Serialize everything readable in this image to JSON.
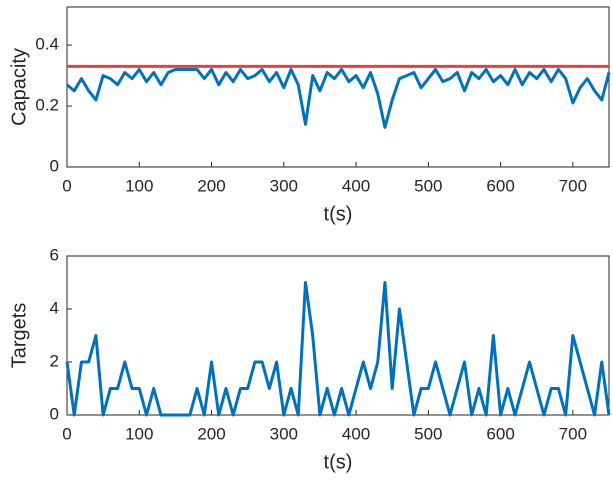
{
  "chart_data": [
    {
      "type": "line",
      "xlabel": "t(s)",
      "ylabel": "Capacity",
      "x": [
        0,
        10,
        20,
        30,
        40,
        50,
        60,
        70,
        80,
        90,
        100,
        110,
        120,
        130,
        140,
        150,
        160,
        170,
        180,
        190,
        200,
        210,
        220,
        230,
        240,
        250,
        260,
        270,
        280,
        290,
        300,
        310,
        320,
        330,
        340,
        350,
        360,
        370,
        380,
        390,
        400,
        410,
        420,
        430,
        440,
        450,
        460,
        470,
        480,
        490,
        500,
        510,
        520,
        530,
        540,
        550,
        560,
        570,
        580,
        590,
        600,
        610,
        620,
        630,
        640,
        650,
        660,
        670,
        680,
        690,
        700,
        710,
        720,
        730,
        740,
        750
      ],
      "series": [
        {
          "color": "#0072bd",
          "values": [
            0.27,
            0.25,
            0.29,
            0.25,
            0.22,
            0.3,
            0.29,
            0.27,
            0.31,
            0.29,
            0.32,
            0.28,
            0.31,
            0.27,
            0.31,
            0.32,
            0.32,
            0.32,
            0.32,
            0.29,
            0.32,
            0.27,
            0.31,
            0.28,
            0.32,
            0.29,
            0.3,
            0.32,
            0.28,
            0.31,
            0.26,
            0.32,
            0.27,
            0.14,
            0.3,
            0.25,
            0.31,
            0.29,
            0.32,
            0.28,
            0.3,
            0.26,
            0.31,
            0.24,
            0.13,
            0.22,
            0.29,
            0.3,
            0.31,
            0.26,
            0.29,
            0.32,
            0.28,
            0.29,
            0.31,
            0.25,
            0.31,
            0.29,
            0.32,
            0.28,
            0.3,
            0.27,
            0.32,
            0.27,
            0.31,
            0.29,
            0.32,
            0.28,
            0.32,
            0.29,
            0.21,
            0.26,
            0.29,
            0.25,
            0.22,
            0.31
          ]
        },
        {
          "color": "#e8403c",
          "x": [
            0,
            750
          ],
          "values": [
            0.33,
            0.33
          ]
        }
      ],
      "xlim": [
        0,
        750
      ],
      "ylim": [
        0,
        0.525
      ],
      "xticks": [
        0,
        100,
        200,
        300,
        400,
        500,
        600,
        700
      ],
      "yticks": [
        0,
        0.2,
        0.4
      ]
    },
    {
      "type": "line",
      "xlabel": "t(s)",
      "ylabel": "Targets",
      "x": [
        0,
        10,
        20,
        30,
        40,
        50,
        60,
        70,
        80,
        90,
        100,
        110,
        120,
        130,
        140,
        150,
        160,
        170,
        180,
        190,
        200,
        210,
        220,
        230,
        240,
        250,
        260,
        270,
        280,
        290,
        300,
        310,
        320,
        330,
        340,
        350,
        360,
        370,
        380,
        390,
        400,
        410,
        420,
        430,
        440,
        450,
        460,
        470,
        480,
        490,
        500,
        510,
        520,
        530,
        540,
        550,
        560,
        570,
        580,
        590,
        600,
        610,
        620,
        630,
        640,
        650,
        660,
        670,
        680,
        690,
        700,
        710,
        720,
        730,
        740,
        750
      ],
      "series": [
        {
          "color": "#0072bd",
          "values": [
            2,
            0,
            2,
            2,
            3,
            0,
            1,
            1,
            2,
            1,
            1,
            0,
            1,
            0,
            0,
            0,
            0,
            0,
            1,
            0,
            2,
            0,
            1,
            0,
            1,
            1,
            2,
            2,
            1,
            2,
            0,
            1,
            0,
            5,
            3,
            0,
            1,
            0,
            1,
            0,
            1,
            2,
            1,
            2,
            5,
            1,
            4,
            2,
            0,
            1,
            1,
            2,
            1,
            0,
            1,
            2,
            0,
            1,
            0,
            3,
            0,
            1,
            0,
            1,
            2,
            1,
            0,
            1,
            1,
            0,
            3,
            2,
            1,
            0,
            2,
            0
          ]
        }
      ],
      "xlim": [
        0,
        750
      ],
      "ylim": [
        0,
        6
      ],
      "xticks": [
        0,
        100,
        200,
        300,
        400,
        500,
        600,
        700
      ],
      "yticks": [
        0,
        2,
        4,
        6
      ]
    }
  ]
}
